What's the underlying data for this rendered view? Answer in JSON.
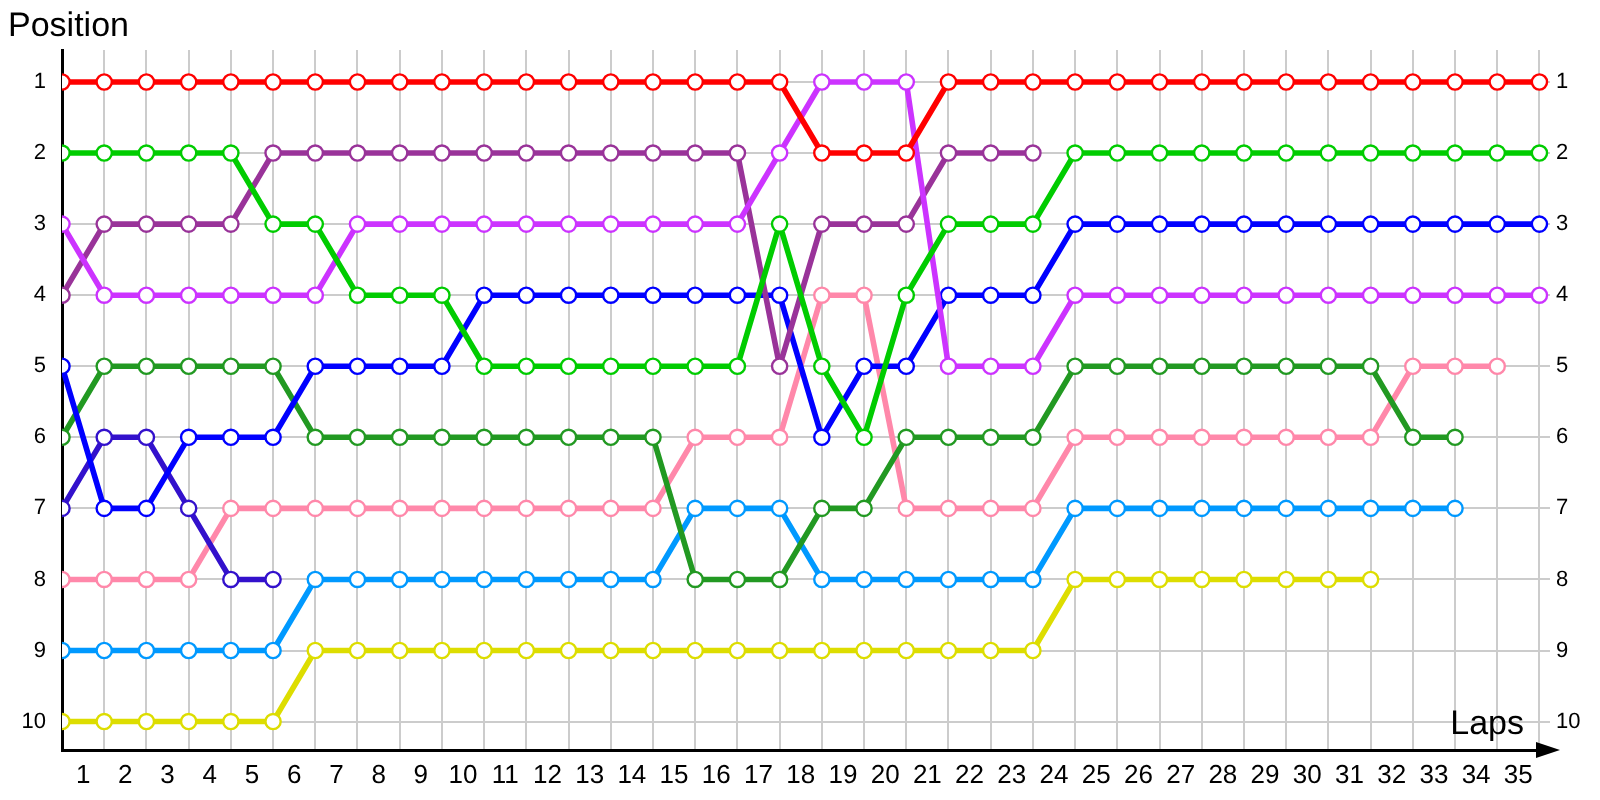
{
  "chart_data": {
    "type": "line",
    "xlabel": "Laps",
    "ylabel": "Position",
    "marker": "circle",
    "line_style": "solid",
    "grid": true,
    "x": [
      0,
      1,
      2,
      3,
      4,
      5,
      6,
      7,
      8,
      9,
      10,
      11,
      12,
      13,
      14,
      15,
      16,
      17,
      18,
      19,
      20,
      21,
      22,
      23,
      24,
      25,
      26,
      27,
      28,
      29,
      30,
      31,
      32,
      33,
      34,
      35
    ],
    "xlim": [
      0,
      35.25
    ],
    "xticks": [
      {
        "value": 0,
        "label": null
      },
      {
        "value": 0.5,
        "label": "1"
      },
      {
        "value": 1,
        "label": null
      },
      {
        "value": 1.5,
        "label": "2"
      },
      {
        "value": 2,
        "label": null
      },
      {
        "value": 2.5,
        "label": "3"
      },
      {
        "value": 3,
        "label": null
      },
      {
        "value": 3.5,
        "label": "4"
      },
      {
        "value": 4,
        "label": null
      },
      {
        "value": 4.5,
        "label": "5"
      },
      {
        "value": 5,
        "label": null
      },
      {
        "value": 5.5,
        "label": "6"
      },
      {
        "value": 6,
        "label": null
      },
      {
        "value": 6.5,
        "label": "7"
      },
      {
        "value": 7,
        "label": null
      },
      {
        "value": 7.5,
        "label": "8"
      },
      {
        "value": 8,
        "label": null
      },
      {
        "value": 8.5,
        "label": "9"
      },
      {
        "value": 9,
        "label": null
      },
      {
        "value": 9.5,
        "label": "10"
      },
      {
        "value": 10,
        "label": null
      },
      {
        "value": 10.5,
        "label": "11"
      },
      {
        "value": 11,
        "label": null
      },
      {
        "value": 11.5,
        "label": "12"
      },
      {
        "value": 12,
        "label": null
      },
      {
        "value": 12.5,
        "label": "13"
      },
      {
        "value": 13,
        "label": null
      },
      {
        "value": 13.5,
        "label": "14"
      },
      {
        "value": 14,
        "label": null
      },
      {
        "value": 14.5,
        "label": "15"
      },
      {
        "value": 15,
        "label": null
      },
      {
        "value": 15.5,
        "label": "16"
      },
      {
        "value": 16,
        "label": null
      },
      {
        "value": 16.5,
        "label": "17"
      },
      {
        "value": 17,
        "label": null
      },
      {
        "value": 17.5,
        "label": "18"
      },
      {
        "value": 18,
        "label": null
      },
      {
        "value": 18.5,
        "label": "19"
      },
      {
        "value": 19,
        "label": null
      },
      {
        "value": 19.5,
        "label": "20"
      },
      {
        "value": 20,
        "label": null
      },
      {
        "value": 20.5,
        "label": "21"
      },
      {
        "value": 21,
        "label": null
      },
      {
        "value": 21.5,
        "label": "22"
      },
      {
        "value": 22,
        "label": null
      },
      {
        "value": 22.5,
        "label": "23"
      },
      {
        "value": 23,
        "label": null
      },
      {
        "value": 23.5,
        "label": "24"
      },
      {
        "value": 24,
        "label": null
      },
      {
        "value": 24.5,
        "label": "25"
      },
      {
        "value": 25,
        "label": null
      },
      {
        "value": 25.5,
        "label": "26"
      },
      {
        "value": 26,
        "label": null
      },
      {
        "value": 26.5,
        "label": "27"
      },
      {
        "value": 27,
        "label": null
      },
      {
        "value": 27.5,
        "label": "28"
      },
      {
        "value": 28,
        "label": null
      },
      {
        "value": 28.5,
        "label": "29"
      },
      {
        "value": 29,
        "label": null
      },
      {
        "value": 29.5,
        "label": "30"
      },
      {
        "value": 30,
        "label": null
      },
      {
        "value": 30.5,
        "label": "31"
      },
      {
        "value": 31,
        "label": null
      },
      {
        "value": 31.5,
        "label": "32"
      },
      {
        "value": 32,
        "label": null
      },
      {
        "value": 32.5,
        "label": "33"
      },
      {
        "value": 33,
        "label": null
      },
      {
        "value": 33.5,
        "label": "34"
      },
      {
        "value": 34,
        "label": null
      },
      {
        "value": 34.5,
        "label": "35"
      },
      {
        "value": 35,
        "label": null
      }
    ],
    "ylim": [
      10.4,
      0.55
    ],
    "yticks": [
      1,
      2,
      3,
      4,
      5,
      6,
      7,
      8,
      9,
      10
    ],
    "y2lim": [
      10.4,
      0.55
    ],
    "y2ticks": [
      1,
      2,
      3,
      4,
      5,
      6,
      7,
      8,
      9,
      10
    ],
    "series": [
      {
        "color": "#ff0000",
        "values": [
          1,
          1,
          1,
          1,
          1,
          1,
          1,
          1,
          1,
          1,
          1,
          1,
          1,
          1,
          1,
          1,
          1,
          1,
          2,
          2,
          2,
          1,
          1,
          1,
          1,
          1,
          1,
          1,
          1,
          1,
          1,
          1,
          1,
          1,
          1,
          1
        ]
      },
      {
        "color": "#00cc00",
        "values": [
          2,
          2,
          2,
          2,
          2,
          3,
          3,
          4,
          4,
          4,
          5,
          5,
          5,
          5,
          5,
          5,
          5,
          3,
          5,
          6,
          4,
          3,
          3,
          3,
          2,
          2,
          2,
          2,
          2,
          2,
          2,
          2,
          2,
          2,
          2,
          2
        ]
      },
      {
        "color": "#cc33ff",
        "values": [
          3,
          4,
          4,
          4,
          4,
          4,
          4,
          3,
          3,
          3,
          3,
          3,
          3,
          3,
          3,
          3,
          3,
          2,
          1,
          1,
          1,
          5,
          5,
          5,
          4,
          4,
          4,
          4,
          4,
          4,
          4,
          4,
          4,
          4,
          4,
          4
        ]
      },
      {
        "color": "#993399",
        "values": [
          4,
          3,
          3,
          3,
          3,
          2,
          2,
          2,
          2,
          2,
          2,
          2,
          2,
          2,
          2,
          2,
          2,
          5,
          3,
          3,
          3,
          2,
          2,
          2,
          null,
          null,
          null,
          null,
          null,
          null,
          null,
          null,
          null,
          null,
          null,
          null
        ]
      },
      {
        "color": "#0000ff",
        "values": [
          5,
          7,
          7,
          6,
          6,
          6,
          5,
          5,
          5,
          5,
          4,
          4,
          4,
          4,
          4,
          4,
          4,
          4,
          6,
          5,
          5,
          4,
          4,
          4,
          3,
          3,
          3,
          3,
          3,
          3,
          3,
          3,
          3,
          3,
          3,
          3
        ]
      },
      {
        "color": "#229922",
        "values": [
          6,
          5,
          5,
          5,
          5,
          5,
          6,
          6,
          6,
          6,
          6,
          6,
          6,
          6,
          6,
          8,
          8,
          8,
          7,
          7,
          6,
          6,
          6,
          6,
          5,
          5,
          5,
          5,
          5,
          5,
          5,
          5,
          6,
          6,
          null,
          null
        ]
      },
      {
        "color": "#3311cc",
        "values": [
          7,
          6,
          6,
          7,
          8,
          8,
          null,
          null,
          null,
          null,
          null,
          null,
          null,
          null,
          null,
          null,
          null,
          null,
          null,
          null,
          null,
          null,
          null,
          null,
          null,
          null,
          null,
          null,
          null,
          null,
          null,
          null,
          null,
          null,
          null,
          null
        ]
      },
      {
        "color": "#ff88aa",
        "values": [
          8,
          8,
          8,
          8,
          7,
          7,
          7,
          7,
          7,
          7,
          7,
          7,
          7,
          7,
          7,
          6,
          6,
          6,
          4,
          4,
          7,
          7,
          7,
          7,
          6,
          6,
          6,
          6,
          6,
          6,
          6,
          6,
          5,
          5,
          5,
          null
        ]
      },
      {
        "color": "#0099ff",
        "values": [
          9,
          9,
          9,
          9,
          9,
          9,
          8,
          8,
          8,
          8,
          8,
          8,
          8,
          8,
          8,
          7,
          7,
          7,
          8,
          8,
          8,
          8,
          8,
          8,
          7,
          7,
          7,
          7,
          7,
          7,
          7,
          7,
          7,
          7,
          null,
          null
        ]
      },
      {
        "color": "#dddd00",
        "values": [
          10,
          10,
          10,
          10,
          10,
          10,
          9,
          9,
          9,
          9,
          9,
          9,
          9,
          9,
          9,
          9,
          9,
          9,
          9,
          9,
          9,
          9,
          9,
          9,
          8,
          8,
          8,
          8,
          8,
          8,
          8,
          8,
          null,
          null,
          null,
          null
        ]
      }
    ]
  }
}
